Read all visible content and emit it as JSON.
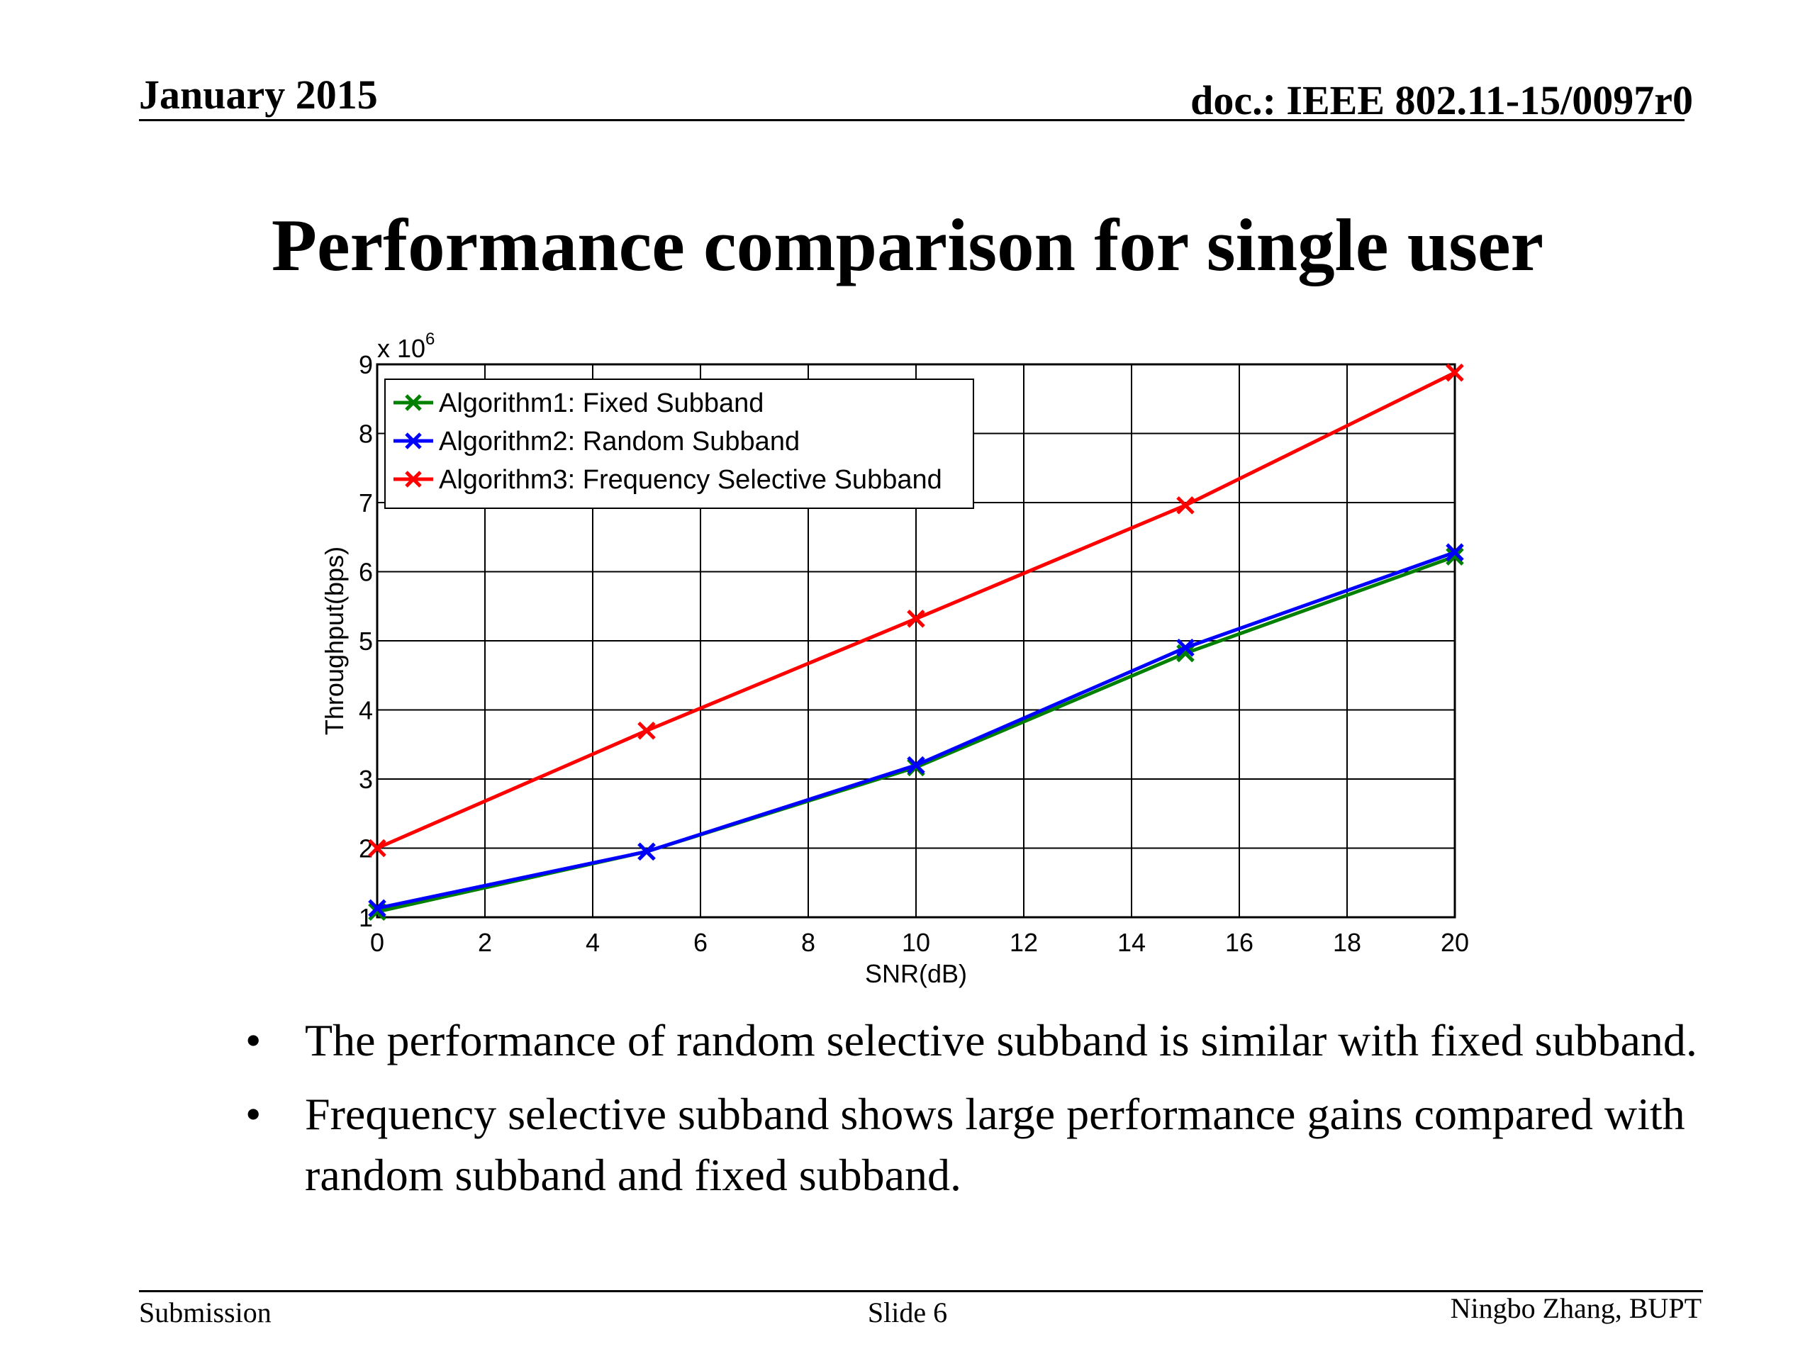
{
  "header": {
    "date": "January 2015",
    "doc": "doc.: IEEE 802.11-15/0097r0"
  },
  "title": "Performance comparison for single user",
  "chart_data": {
    "type": "line",
    "title": "",
    "xlabel": "SNR(dB)",
    "ylabel": "Throughput(bps)",
    "y_multiplier": "x 10",
    "y_multiplier_exp": "6",
    "xlim": [
      0,
      20
    ],
    "ylim": [
      1,
      9
    ],
    "xticks": [
      "0",
      "2",
      "4",
      "6",
      "8",
      "10",
      "12",
      "14",
      "16",
      "18",
      "20"
    ],
    "yticks": [
      "1",
      "2",
      "3",
      "4",
      "5",
      "6",
      "7",
      "8",
      "9"
    ],
    "grid": true,
    "legend_position": "top-left",
    "x": [
      0,
      5,
      10,
      15,
      20
    ],
    "series": [
      {
        "name": "Algorithm1: Fixed Subband",
        "color": "#008000",
        "values": [
          1.08,
          1.95,
          3.17,
          4.82,
          6.22
        ]
      },
      {
        "name": "Algorithm2: Random Subband",
        "color": "#0000ff",
        "values": [
          1.13,
          1.95,
          3.2,
          4.9,
          6.28
        ]
      },
      {
        "name": "Algorithm3: Frequency Selective Subband",
        "color": "#ff0000",
        "values": [
          2.0,
          3.7,
          5.32,
          6.96,
          8.88
        ]
      }
    ]
  },
  "bullets": [
    "The performance of random selective subband is similar with fixed subband.",
    "Frequency selective subband shows large performance gains compared with random subband and fixed subband."
  ],
  "bullet_symbol": "•",
  "footer": {
    "left": "Submission",
    "center": "Slide 6",
    "right": "Ningbo Zhang, BUPT"
  }
}
